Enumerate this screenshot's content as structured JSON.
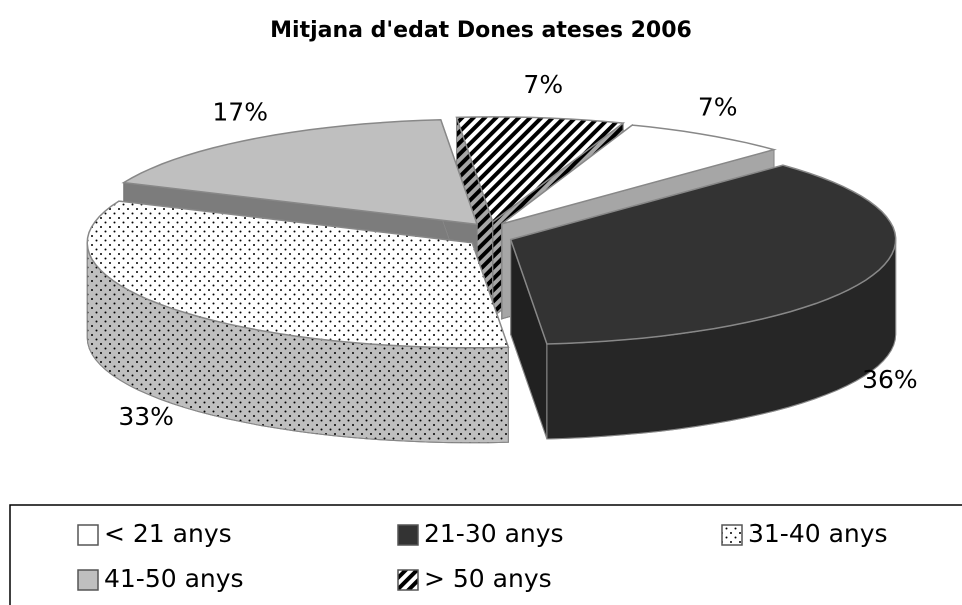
{
  "chart_data": {
    "type": "pie3d",
    "title": "Mitjana d'edat Dones ateses 2006",
    "categories": [
      "< 21 anys",
      "21-30 anys",
      "31-40 anys",
      "41-50 anys",
      "> 50 anys"
    ],
    "values": [
      7,
      36,
      33,
      17,
      7
    ],
    "value_labels": [
      "7%",
      "36%",
      "33%",
      "17%",
      "7%"
    ],
    "colors": [
      "#ffffff",
      "#333333",
      "#ffffff",
      "#bfbfbf",
      "#ffffff"
    ],
    "patterns": [
      "none",
      "none",
      "dots",
      "none",
      "hatch"
    ],
    "legend": "bottom"
  }
}
